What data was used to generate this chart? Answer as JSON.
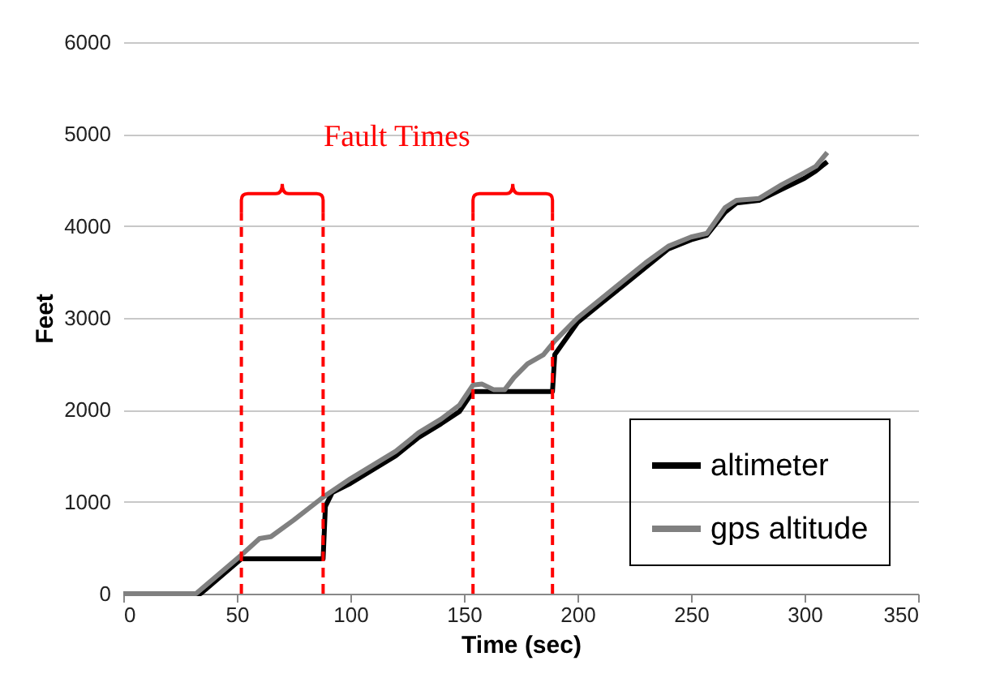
{
  "chart_data": {
    "type": "line",
    "xlabel": "Time (sec)",
    "ylabel": "Feet",
    "xlim": [
      0,
      350
    ],
    "xticks": [
      0,
      50,
      100,
      150,
      200,
      250,
      300,
      350
    ],
    "ylim": [
      0,
      6000
    ],
    "yticks": [
      0,
      1000,
      2000,
      3000,
      4000,
      5000,
      6000
    ],
    "grid": "y",
    "legend": "bottom right",
    "annotations": [
      "Fault Times"
    ],
    "ref_lines": [
      {
        "axis": "x",
        "value": 52,
        "label": null,
        "color": "#ff0000",
        "line_style": "dashed"
      },
      {
        "axis": "x",
        "value": 88,
        "label": null,
        "color": "#ff0000",
        "line_style": "dashed"
      },
      {
        "axis": "x",
        "value": 154,
        "label": null,
        "color": "#ff0000",
        "line_style": "dashed"
      },
      {
        "axis": "x",
        "value": 189,
        "label": null,
        "color": "#ff0000",
        "line_style": "dashed"
      }
    ],
    "series": [
      {
        "name": "altimeter",
        "color": "#000000",
        "x": [
          0,
          34,
          52,
          88,
          89,
          92,
          100,
          110,
          120,
          130,
          140,
          148,
          154,
          189,
          190,
          200,
          210,
          220,
          230,
          240,
          250,
          257,
          265,
          270,
          280,
          290,
          300,
          305,
          310
        ],
        "values": [
          0,
          0,
          380,
          380,
          950,
          1100,
          1200,
          1350,
          1500,
          1700,
          1850,
          1980,
          2200,
          2200,
          2600,
          2950,
          3150,
          3350,
          3550,
          3750,
          3850,
          3900,
          4150,
          4250,
          4280,
          4400,
          4520,
          4600,
          4700
        ]
      },
      {
        "name": "gps altitude",
        "color": "#808080",
        "x": [
          0,
          32,
          52,
          60,
          65,
          75,
          88,
          100,
          110,
          120,
          130,
          140,
          148,
          154,
          158,
          163,
          168,
          172,
          178,
          185,
          190,
          200,
          210,
          220,
          230,
          240,
          250,
          257,
          265,
          270,
          280,
          290,
          300,
          305,
          310
        ],
        "values": [
          0,
          0,
          420,
          600,
          620,
          800,
          1050,
          1250,
          1400,
          1550,
          1750,
          1900,
          2050,
          2270,
          2280,
          2220,
          2220,
          2350,
          2500,
          2600,
          2750,
          3000,
          3200,
          3400,
          3600,
          3780,
          3880,
          3920,
          4200,
          4280,
          4300,
          4450,
          4580,
          4650,
          4800
        ]
      }
    ]
  }
}
